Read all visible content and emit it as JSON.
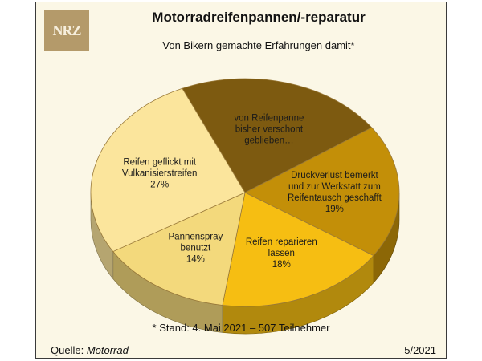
{
  "header": {
    "logo_text": "NRZ",
    "title": "Motorradreifenpannen/-reparatur",
    "subtitle": "Von Bikern gemachte Erfahrungen damit*"
  },
  "chart_data": {
    "type": "pie",
    "title": "Motorradreifenpannen/-reparatur",
    "subtitle": "Von Bikern gemachte Erfahrungen damit*",
    "slices": [
      {
        "label_lines": [
          "von Reifenpanne",
          "bisher verschont",
          "geblieben…"
        ],
        "value": 22,
        "value_label": "",
        "color": "#7d5a10"
      },
      {
        "label_lines": [
          "Druckverlust bemerkt",
          "und zur Werkstatt zum",
          "Reifentausch geschafft"
        ],
        "value": 19,
        "value_label": "19%",
        "color": "#c38f08"
      },
      {
        "label_lines": [
          "Reifen reparieren",
          "lassen"
        ],
        "value": 18,
        "value_label": "18%",
        "color": "#f6be12"
      },
      {
        "label_lines": [
          "Pannenspray",
          "benutzt"
        ],
        "value": 14,
        "value_label": "14%",
        "color": "#f3d97c"
      },
      {
        "label_lines": [
          "Reifen geflickt mit",
          "Vulkanisierstreifen"
        ],
        "value": 27,
        "value_label": "27%",
        "color": "#fbe59c"
      }
    ]
  },
  "footer": {
    "footnote": "* Stand: 4. Mai 2021 – 507 Teilnehmer",
    "source_prefix": "Quelle: ",
    "source_name": "Motorrad",
    "date": "5/2021"
  }
}
